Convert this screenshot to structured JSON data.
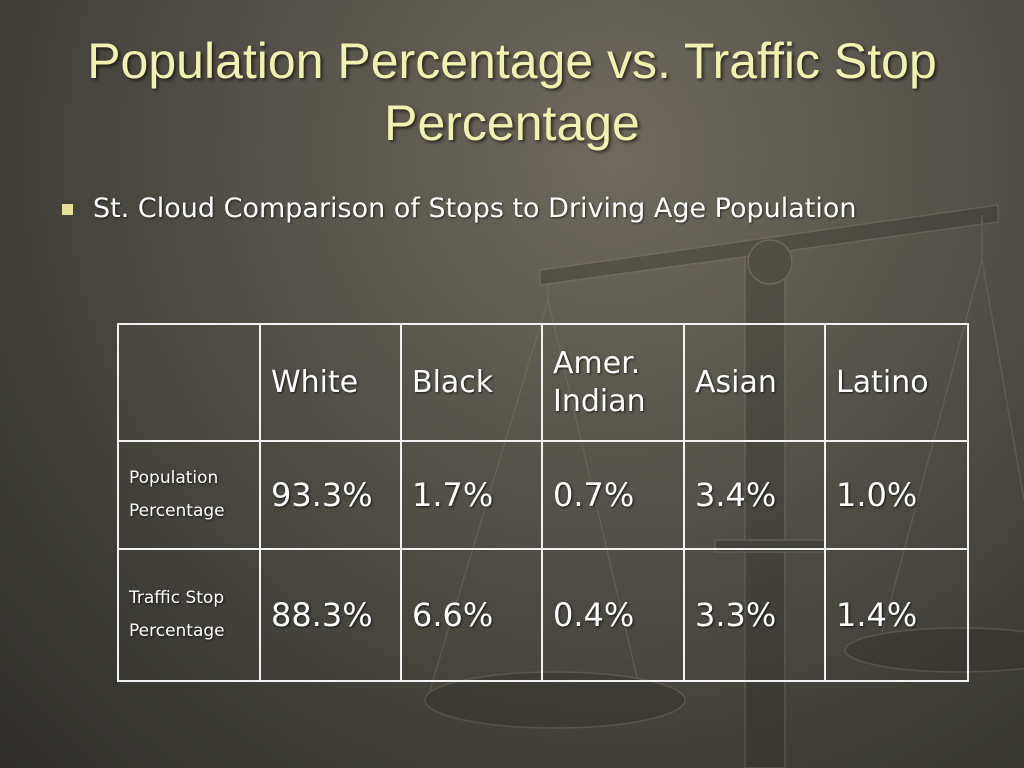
{
  "slide": {
    "title": "Population Percentage vs. Traffic Stop Percentage",
    "bullet": "St. Cloud Comparison of Stops to Driving Age Population"
  },
  "table": {
    "columns": [
      "",
      "White",
      "Black",
      "Amer. Indian",
      "Asian",
      "Latino"
    ],
    "rows": [
      {
        "label": "Population Percentage",
        "values": [
          "93.3%",
          "1.7%",
          "0.7%",
          "3.4%",
          "1.0%"
        ]
      },
      {
        "label": "Traffic Stop Percentage",
        "values": [
          "88.3%",
          "6.6%",
          "0.4%",
          "3.3%",
          "1.4%"
        ]
      }
    ]
  },
  "colors": {
    "title": "#f2f2b0",
    "bullet_marker": "#e8df9a",
    "text": "#ffffff",
    "table_border": "#f2f2f2"
  },
  "background_icon": "balance-scale-icon"
}
